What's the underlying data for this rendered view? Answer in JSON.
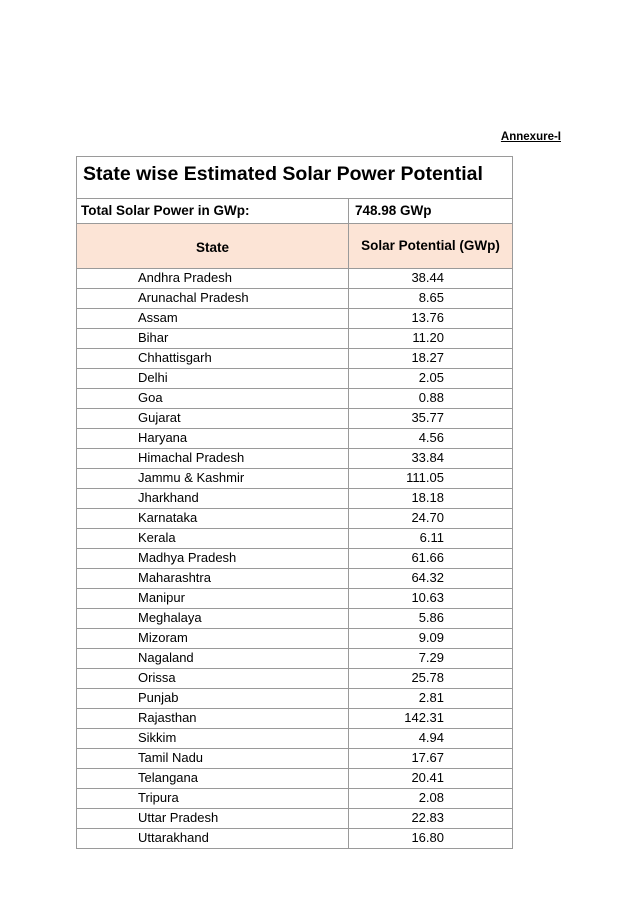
{
  "annexure": "Annexure-I",
  "title": "State wise Estimated Solar Power Potential",
  "total_label": "Total Solar Power  in GWp:",
  "total_value": "748.98 GWp",
  "headers": {
    "state": "State",
    "potential": "Solar Potential (GWp)"
  },
  "rows": [
    {
      "state": "Andhra Pradesh",
      "value": "38.44"
    },
    {
      "state": "Arunachal Pradesh",
      "value": "8.65"
    },
    {
      "state": "Assam",
      "value": "13.76"
    },
    {
      "state": "Bihar",
      "value": "11.20"
    },
    {
      "state": "Chhattisgarh",
      "value": "18.27"
    },
    {
      "state": "Delhi",
      "value": "2.05"
    },
    {
      "state": "Goa",
      "value": "0.88"
    },
    {
      "state": "Gujarat",
      "value": "35.77"
    },
    {
      "state": "Haryana",
      "value": "4.56"
    },
    {
      "state": "Himachal Pradesh",
      "value": "33.84"
    },
    {
      "state": "Jammu & Kashmir",
      "value": "111.05"
    },
    {
      "state": "Jharkhand",
      "value": "18.18"
    },
    {
      "state": "Karnataka",
      "value": "24.70"
    },
    {
      "state": "Kerala",
      "value": "6.11"
    },
    {
      "state": "Madhya Pradesh",
      "value": "61.66"
    },
    {
      "state": "Maharashtra",
      "value": "64.32"
    },
    {
      "state": "Manipur",
      "value": "10.63"
    },
    {
      "state": "Meghalaya",
      "value": "5.86"
    },
    {
      "state": "Mizoram",
      "value": "9.09"
    },
    {
      "state": "Nagaland",
      "value": "7.29"
    },
    {
      "state": "Orissa",
      "value": "25.78"
    },
    {
      "state": "Punjab",
      "value": "2.81"
    },
    {
      "state": "Rajasthan",
      "value": "142.31"
    },
    {
      "state": "Sikkim",
      "value": "4.94"
    },
    {
      "state": "Tamil Nadu",
      "value": "17.67"
    },
    {
      "state": "Telangana",
      "value": "20.41"
    },
    {
      "state": "Tripura",
      "value": "2.08"
    },
    {
      "state": "Uttar Pradesh",
      "value": "22.83"
    },
    {
      "state": "Uttarakhand",
      "value": "16.80"
    }
  ]
}
